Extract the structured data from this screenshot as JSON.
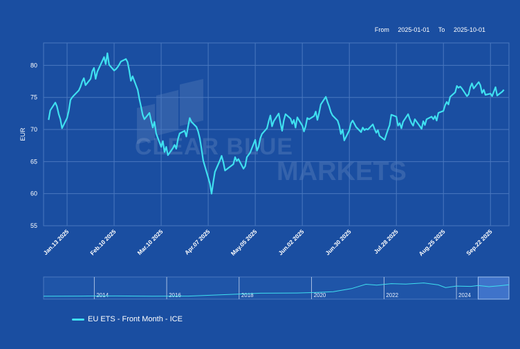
{
  "range": {
    "from_label": "From",
    "from_value": "2025-01-01",
    "to_label": "To",
    "to_value": "2025-10-01"
  },
  "watermark": {
    "line1": "CLEAR BLUE",
    "line2": "MARKETS"
  },
  "colors": {
    "background": "#1a4ea1",
    "line": "#3fe0f0",
    "grid": "#4a78bf",
    "text": "#ffffff"
  },
  "chart_data": {
    "type": "line",
    "title": "",
    "xlabel": "",
    "ylabel": "EUR",
    "ylim": [
      55,
      83.5
    ],
    "yticks": [
      55,
      60,
      65,
      70,
      75,
      80
    ],
    "x_ticks": [
      "Jan.13 2025",
      "Feb.10 2025",
      "Mar.10 2025",
      "Apr.07 2025",
      "May.05 2025",
      "Jun.02 2025",
      "Jun.30 2025",
      "Jul.28 2025",
      "Aug.25 2025",
      "Sep.22 2025"
    ],
    "grid": true,
    "legend_position": "bottom-left",
    "series": [
      {
        "name": "EU ETS - Front Month - ICE",
        "points": [
          [
            "2025-01-02",
            71.5
          ],
          [
            "2025-01-03",
            73.0
          ],
          [
            "2025-01-06",
            74.2
          ],
          [
            "2025-01-07",
            73.6
          ],
          [
            "2025-01-08",
            72.4
          ],
          [
            "2025-01-09",
            71.6
          ],
          [
            "2025-01-10",
            70.2
          ],
          [
            "2025-01-13",
            71.8
          ],
          [
            "2025-01-14",
            72.9
          ],
          [
            "2025-01-15",
            74.6
          ],
          [
            "2025-01-16",
            75.0
          ],
          [
            "2025-01-17",
            75.3
          ],
          [
            "2025-01-20",
            76.1
          ],
          [
            "2025-01-21",
            76.7
          ],
          [
            "2025-01-22",
            77.5
          ],
          [
            "2025-01-23",
            78.0
          ],
          [
            "2025-01-24",
            76.9
          ],
          [
            "2025-01-27",
            77.9
          ],
          [
            "2025-01-28",
            79.1
          ],
          [
            "2025-01-29",
            79.6
          ],
          [
            "2025-01-30",
            77.9
          ],
          [
            "2025-01-31",
            79.0
          ],
          [
            "2025-02-03",
            80.7
          ],
          [
            "2025-02-04",
            81.3
          ],
          [
            "2025-02-05",
            80.2
          ],
          [
            "2025-02-06",
            81.9
          ],
          [
            "2025-02-07",
            80.1
          ],
          [
            "2025-02-10",
            79.2
          ],
          [
            "2025-02-11",
            79.4
          ],
          [
            "2025-02-12",
            79.7
          ],
          [
            "2025-02-13",
            80.1
          ],
          [
            "2025-02-14",
            80.6
          ],
          [
            "2025-02-17",
            81.0
          ],
          [
            "2025-02-18",
            80.5
          ],
          [
            "2025-02-19",
            79.2
          ],
          [
            "2025-02-20",
            77.6
          ],
          [
            "2025-02-21",
            78.3
          ],
          [
            "2025-02-24",
            76.2
          ],
          [
            "2025-02-25",
            74.8
          ],
          [
            "2025-02-26",
            73.6
          ],
          [
            "2025-02-27",
            72.3
          ],
          [
            "2025-02-28",
            71.6
          ],
          [
            "2025-03-03",
            72.6
          ],
          [
            "2025-03-04",
            71.4
          ],
          [
            "2025-03-05",
            70.3
          ],
          [
            "2025-03-06",
            71.2
          ],
          [
            "2025-03-07",
            69.4
          ],
          [
            "2025-03-10",
            67.3
          ],
          [
            "2025-03-11",
            68.2
          ],
          [
            "2025-03-12",
            66.5
          ],
          [
            "2025-03-13",
            67.3
          ],
          [
            "2025-03-14",
            66.0
          ],
          [
            "2025-03-17",
            67.1
          ],
          [
            "2025-03-18",
            67.6
          ],
          [
            "2025-03-19",
            67.0
          ],
          [
            "2025-03-20",
            68.5
          ],
          [
            "2025-03-21",
            69.4
          ],
          [
            "2025-03-24",
            69.8
          ],
          [
            "2025-03-25",
            68.9
          ],
          [
            "2025-03-26",
            70.4
          ],
          [
            "2025-03-27",
            71.8
          ],
          [
            "2025-03-28",
            71.2
          ],
          [
            "2025-03-31",
            70.4
          ],
          [
            "2025-04-01",
            69.7
          ],
          [
            "2025-04-02",
            68.6
          ],
          [
            "2025-04-03",
            67.0
          ],
          [
            "2025-04-04",
            65.2
          ],
          [
            "2025-04-07",
            62.5
          ],
          [
            "2025-04-08",
            61.6
          ],
          [
            "2025-04-09",
            60.0
          ],
          [
            "2025-04-10",
            61.8
          ],
          [
            "2025-04-11",
            63.4
          ],
          [
            "2025-04-14",
            65.2
          ],
          [
            "2025-04-15",
            65.9
          ],
          [
            "2025-04-16",
            64.9
          ],
          [
            "2025-04-17",
            63.6
          ],
          [
            "2025-04-22",
            64.6
          ],
          [
            "2025-04-23",
            65.7
          ],
          [
            "2025-04-24",
            65.1
          ],
          [
            "2025-04-25",
            65.4
          ],
          [
            "2025-04-28",
            63.9
          ],
          [
            "2025-04-29",
            64.3
          ],
          [
            "2025-04-30",
            65.7
          ],
          [
            "2025-05-02",
            66.4
          ],
          [
            "2025-05-05",
            68.4
          ],
          [
            "2025-05-06",
            66.7
          ],
          [
            "2025-05-07",
            67.3
          ],
          [
            "2025-05-08",
            68.6
          ],
          [
            "2025-05-09",
            69.3
          ],
          [
            "2025-05-12",
            70.2
          ],
          [
            "2025-05-13",
            71.3
          ],
          [
            "2025-05-14",
            72.2
          ],
          [
            "2025-05-15",
            70.5
          ],
          [
            "2025-05-16",
            71.3
          ],
          [
            "2025-05-19",
            72.5
          ],
          [
            "2025-05-20",
            71.0
          ],
          [
            "2025-05-21",
            69.8
          ],
          [
            "2025-05-22",
            71.4
          ],
          [
            "2025-05-23",
            72.4
          ],
          [
            "2025-05-26",
            71.7
          ],
          [
            "2025-05-27",
            70.9
          ],
          [
            "2025-05-28",
            71.5
          ],
          [
            "2025-05-29",
            70.3
          ],
          [
            "2025-05-30",
            71.9
          ],
          [
            "2025-06-02",
            70.6
          ],
          [
            "2025-06-03",
            69.7
          ],
          [
            "2025-06-04",
            70.5
          ],
          [
            "2025-06-05",
            71.8
          ],
          [
            "2025-06-06",
            71.6
          ],
          [
            "2025-06-09",
            72.1
          ],
          [
            "2025-06-10",
            72.8
          ],
          [
            "2025-06-11",
            71.5
          ],
          [
            "2025-06-12",
            72.6
          ],
          [
            "2025-06-13",
            73.9
          ],
          [
            "2025-06-16",
            75.1
          ],
          [
            "2025-06-17",
            74.3
          ],
          [
            "2025-06-18",
            73.6
          ],
          [
            "2025-06-19",
            72.7
          ],
          [
            "2025-06-20",
            72.2
          ],
          [
            "2025-06-23",
            71.4
          ],
          [
            "2025-06-24",
            70.6
          ],
          [
            "2025-06-25",
            69.3
          ],
          [
            "2025-06-26",
            70.0
          ],
          [
            "2025-06-27",
            68.3
          ],
          [
            "2025-06-30",
            69.9
          ],
          [
            "2025-07-01",
            71.0
          ],
          [
            "2025-07-02",
            71.4
          ],
          [
            "2025-07-03",
            70.9
          ],
          [
            "2025-07-04",
            70.4
          ],
          [
            "2025-07-07",
            69.6
          ],
          [
            "2025-07-08",
            70.3
          ],
          [
            "2025-07-09",
            69.9
          ],
          [
            "2025-07-10",
            70.1
          ],
          [
            "2025-07-11",
            70.0
          ],
          [
            "2025-07-14",
            70.8
          ],
          [
            "2025-07-15",
            70.1
          ],
          [
            "2025-07-16",
            69.5
          ],
          [
            "2025-07-17",
            69.9
          ],
          [
            "2025-07-18",
            69.0
          ],
          [
            "2025-07-21",
            68.4
          ],
          [
            "2025-07-22",
            69.2
          ],
          [
            "2025-07-23",
            70.0
          ],
          [
            "2025-07-24",
            70.7
          ],
          [
            "2025-07-25",
            72.3
          ],
          [
            "2025-07-28",
            72.0
          ],
          [
            "2025-07-29",
            70.6
          ],
          [
            "2025-07-30",
            71.0
          ],
          [
            "2025-07-31",
            70.2
          ],
          [
            "2025-08-01",
            71.2
          ],
          [
            "2025-08-04",
            72.4
          ],
          [
            "2025-08-05",
            71.6
          ],
          [
            "2025-08-06",
            71.0
          ],
          [
            "2025-08-07",
            70.6
          ],
          [
            "2025-08-08",
            71.6
          ],
          [
            "2025-08-11",
            70.5
          ],
          [
            "2025-08-12",
            70.1
          ],
          [
            "2025-08-13",
            71.3
          ],
          [
            "2025-08-14",
            70.7
          ],
          [
            "2025-08-15",
            71.6
          ],
          [
            "2025-08-18",
            72.0
          ],
          [
            "2025-08-19",
            71.6
          ],
          [
            "2025-08-20",
            72.1
          ],
          [
            "2025-08-21",
            71.4
          ],
          [
            "2025-08-22",
            72.6
          ],
          [
            "2025-08-25",
            72.9
          ],
          [
            "2025-08-26",
            73.8
          ],
          [
            "2025-08-27",
            74.3
          ],
          [
            "2025-08-28",
            73.9
          ],
          [
            "2025-08-29",
            75.1
          ],
          [
            "2025-09-01",
            75.8
          ],
          [
            "2025-09-02",
            76.8
          ],
          [
            "2025-09-03",
            76.5
          ],
          [
            "2025-09-04",
            76.7
          ],
          [
            "2025-09-05",
            76.4
          ],
          [
            "2025-09-08",
            75.2
          ],
          [
            "2025-09-09",
            75.5
          ],
          [
            "2025-09-10",
            76.6
          ],
          [
            "2025-09-11",
            77.2
          ],
          [
            "2025-09-12",
            76.4
          ],
          [
            "2025-09-15",
            77.4
          ],
          [
            "2025-09-16",
            76.9
          ],
          [
            "2025-09-17",
            75.7
          ],
          [
            "2025-09-18",
            76.2
          ],
          [
            "2025-09-19",
            75.4
          ],
          [
            "2025-09-22",
            75.6
          ],
          [
            "2025-09-23",
            75.2
          ],
          [
            "2025-09-24",
            75.9
          ],
          [
            "2025-09-25",
            76.6
          ],
          [
            "2025-09-26",
            75.3
          ],
          [
            "2025-09-29",
            75.9
          ],
          [
            "2025-09-30",
            76.2
          ]
        ]
      }
    ],
    "navigator": {
      "year_labels": [
        "2014",
        "2016",
        "2018",
        "2020",
        "2022",
        "2024"
      ],
      "selected_range": [
        "2025-01-01",
        "2025-10-01"
      ]
    }
  }
}
